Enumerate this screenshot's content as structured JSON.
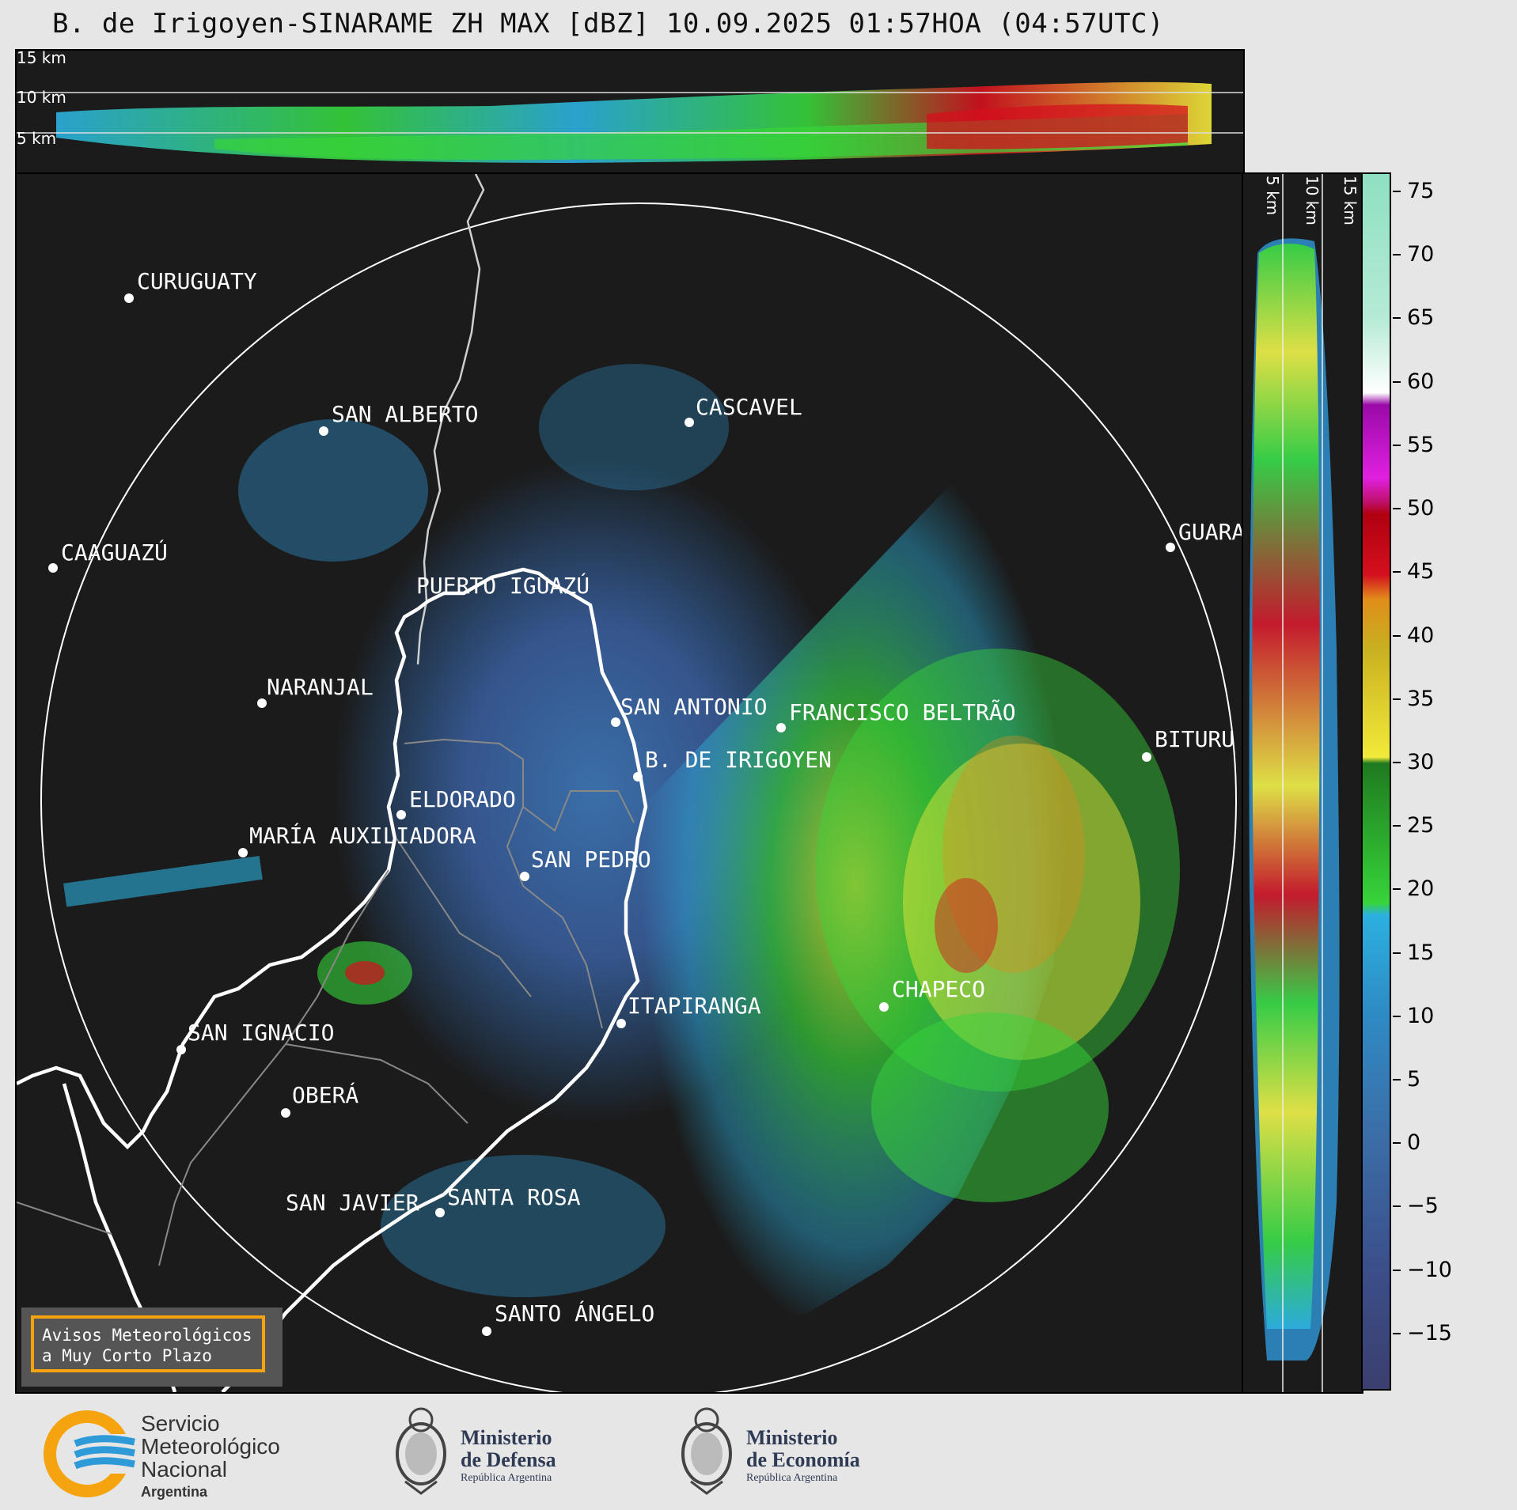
{
  "title": "B. de Irigoyen-SINARAME ZH MAX [dBZ] 10.09.2025 01:57HOA (04:57UTC)",
  "height_labels": {
    "h15": "15 km",
    "h10": "10 km",
    "h5": "5 km"
  },
  "cities": [
    {
      "name": "CURUGUATY"
    },
    {
      "name": "SAN ALBERTO"
    },
    {
      "name": "CASCAVEL"
    },
    {
      "name": "CAAGUAZÚ"
    },
    {
      "name": "GUARA"
    },
    {
      "name": "PUERTO IGUAZÚ"
    },
    {
      "name": "NARANJAL"
    },
    {
      "name": "SAN ANTONIO"
    },
    {
      "name": "FRANCISCO BELTRÃO"
    },
    {
      "name": "BITURU"
    },
    {
      "name": "B. DE IRIGOYEN"
    },
    {
      "name": "ELDORADO"
    },
    {
      "name": "MARÍA AUXILIADORA"
    },
    {
      "name": "SAN PEDRO"
    },
    {
      "name": "CHAPECO"
    },
    {
      "name": "ITAPIRANGA"
    },
    {
      "name": "SAN IGNACIO"
    },
    {
      "name": "OBERÁ"
    },
    {
      "name": "SAN JAVIER"
    },
    {
      "name": "SANTA ROSA"
    },
    {
      "name": "SANTO ÁNGELO"
    }
  ],
  "colorbar": {
    "unit": "dBZ",
    "min": -19.5,
    "max": 76.5,
    "ticks": [
      "75",
      "70",
      "65",
      "60",
      "55",
      "50",
      "45",
      "40",
      "35",
      "30",
      "25",
      "20",
      "15",
      "10",
      "5",
      "0",
      "−5",
      "−10",
      "−15"
    ],
    "colors": {
      "dark": "#3b3f6e",
      "blue": "#2e8bc4",
      "cyan": "#2bb0e0",
      "green": "#37d43a",
      "yellow": "#f2ea3a",
      "orange": "#e08d1a",
      "red": "#d4101e",
      "magenta": "#e020e0",
      "teal": "#8ee0c0"
    }
  },
  "notice": {
    "line1": "Avisos Meteorológicos",
    "line2": "a Muy Corto Plazo",
    "border_color": "#f5a30f"
  },
  "logos": {
    "smn": {
      "line1": "Servicio",
      "line2": "Meteorológico",
      "line3": "Nacional",
      "line4": "Argentina"
    },
    "defensa": {
      "line1": "Ministerio",
      "line2": "de Defensa",
      "line3": "República Argentina"
    },
    "economia": {
      "line1": "Ministerio",
      "line2": "de Economía",
      "line3": "República Argentina"
    }
  }
}
